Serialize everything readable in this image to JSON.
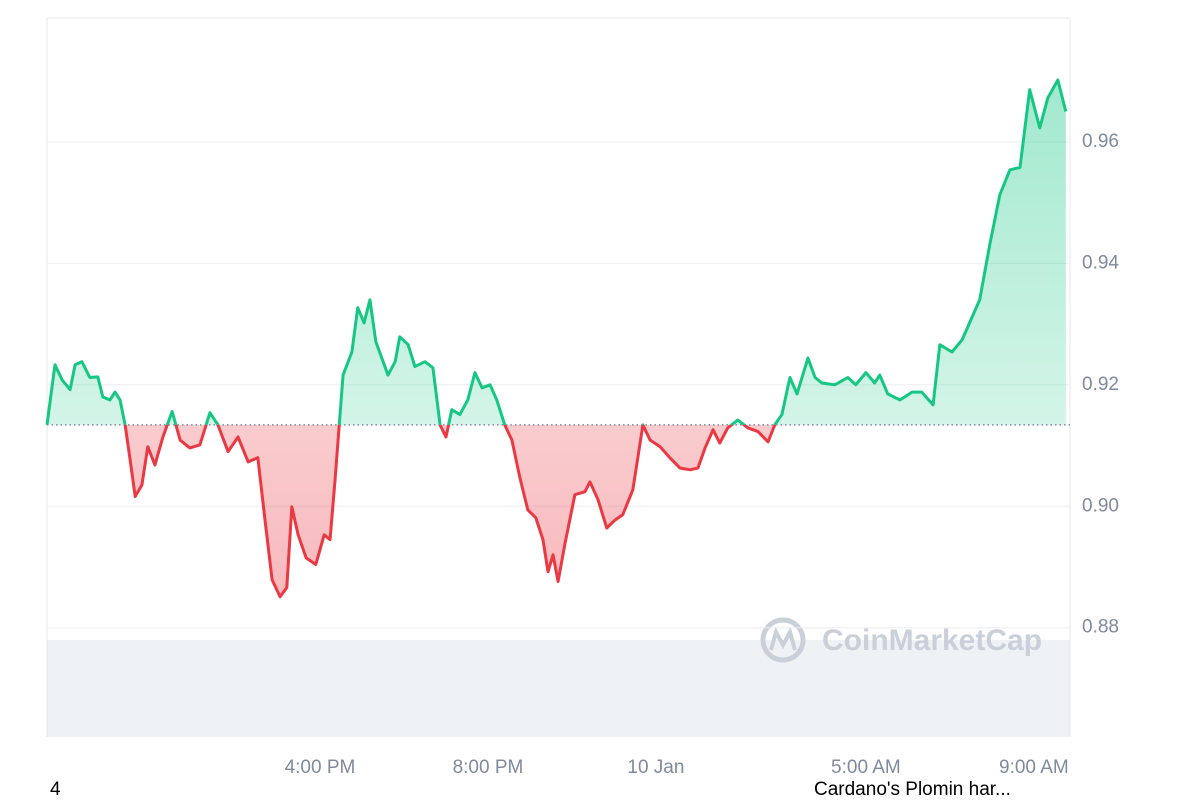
{
  "chart_data": {
    "type": "line",
    "x": [
      9.5,
      9.69,
      9.86,
      10.05,
      10.17,
      10.33,
      10.52,
      10.71,
      10.83,
      11.0,
      11.12,
      11.24,
      11.36,
      11.48,
      11.6,
      11.76,
      11.9,
      12.07,
      12.26,
      12.48,
      12.67,
      12.9,
      13.14,
      13.38,
      13.57,
      13.81,
      14.05,
      14.29,
      14.52,
      14.69,
      14.86,
      15.05,
      15.21,
      15.33,
      15.48,
      15.67,
      15.9,
      16.1,
      16.24,
      16.36,
      16.55,
      16.76,
      16.9,
      17.05,
      17.19,
      17.33,
      17.62,
      17.79,
      17.9,
      18.1,
      18.26,
      18.5,
      18.69,
      18.86,
      19.0,
      19.14,
      19.33,
      19.52,
      19.69,
      19.86,
      20.05,
      20.21,
      20.4,
      20.57,
      20.76,
      20.95,
      21.14,
      21.31,
      21.43,
      21.55,
      21.67,
      21.83,
      22.07,
      22.31,
      22.43,
      22.62,
      22.83,
      23.02,
      23.21,
      23.45,
      23.69,
      23.86,
      24.1,
      24.33,
      24.57,
      24.81,
      25.0,
      25.17,
      25.36,
      25.52,
      25.71,
      25.95,
      26.19,
      26.43,
      26.67,
      26.83,
      27.0,
      27.19,
      27.36,
      27.62,
      27.79,
      27.95,
      28.26,
      28.57,
      28.76,
      29.0,
      29.21,
      29.33,
      29.52,
      29.81,
      30.1,
      30.33,
      30.6,
      30.76,
      31.05,
      31.29,
      31.52,
      31.71,
      31.95,
      32.19,
      32.43,
      32.67,
      32.9,
      33.14,
      33.33,
      33.57,
      33.76
    ],
    "series": [
      {
        "values": [
          0.9134,
          0.9233,
          0.9208,
          0.9192,
          0.9233,
          0.9238,
          0.9212,
          0.9213,
          0.918,
          0.9175,
          0.9188,
          0.9175,
          0.9134,
          0.9076,
          0.9016,
          0.9035,
          0.9098,
          0.9068,
          0.9114,
          0.9156,
          0.9109,
          0.9096,
          0.9101,
          0.9154,
          0.9134,
          0.909,
          0.9114,
          0.9073,
          0.908,
          0.8978,
          0.8879,
          0.8851,
          0.8866,
          0.8999,
          0.8953,
          0.8915,
          0.8904,
          0.8953,
          0.8945,
          0.9044,
          0.9216,
          0.9254,
          0.9327,
          0.9302,
          0.934,
          0.9271,
          0.9216,
          0.9238,
          0.9279,
          0.9266,
          0.923,
          0.9238,
          0.9228,
          0.9134,
          0.9114,
          0.9159,
          0.9151,
          0.9175,
          0.922,
          0.9195,
          0.92,
          0.9175,
          0.9134,
          0.9109,
          0.9047,
          0.8994,
          0.8981,
          0.8945,
          0.8892,
          0.892,
          0.8876,
          0.8937,
          0.9019,
          0.9024,
          0.904,
          0.9011,
          0.8964,
          0.8977,
          0.8986,
          0.9027,
          0.9134,
          0.9109,
          0.9098,
          0.908,
          0.9063,
          0.906,
          0.9063,
          0.9096,
          0.9126,
          0.9104,
          0.9129,
          0.9142,
          0.9129,
          0.9123,
          0.9106,
          0.9134,
          0.9151,
          0.9212,
          0.9185,
          0.9244,
          0.9212,
          0.9203,
          0.92,
          0.9212,
          0.92,
          0.922,
          0.9203,
          0.9216,
          0.9185,
          0.9175,
          0.9188,
          0.9188,
          0.9167,
          0.9266,
          0.9254,
          0.9274,
          0.931,
          0.934,
          0.9431,
          0.9513,
          0.9554,
          0.9558,
          0.9686,
          0.9623,
          0.9672,
          0.9702,
          0.965
        ]
      }
    ],
    "baseline": 0.9134,
    "up_color": "#16c784",
    "down_color": "#ea3943",
    "xlim": [
      9.5,
      33.86
    ],
    "xticks": [
      {
        "value": 16,
        "label": "4:00 PM"
      },
      {
        "value": 20,
        "label": "8:00 PM"
      },
      {
        "value": 24,
        "label": "10 Jan"
      },
      {
        "value": 29,
        "label": "5:00 AM"
      },
      {
        "value": 33,
        "label": "9:00 AM"
      }
    ],
    "ylim": [
      0.862,
      0.9804
    ],
    "yticks": [
      0.88,
      {
        "value": 0.9,
        "label": "0.90"
      },
      0.92,
      0.94,
      0.96
    ],
    "grid": true,
    "watermark": "CoinMarketCap"
  },
  "footer": {
    "left": "4",
    "right": "Cardano's Plomin har..."
  }
}
